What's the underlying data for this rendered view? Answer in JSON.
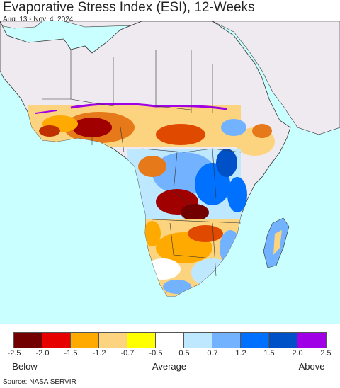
{
  "title": "Evaporative Stress Index (ESI), 12-Weeks",
  "subtitle": "Aug. 13 - Nov. 4, 2024",
  "source": "Source: NASA SERVIR",
  "colors": {
    "ocean": "#c9ffff",
    "no_data_land": "#efeaf0",
    "borders": "#333333"
  },
  "legend": {
    "colors": [
      "#730000",
      "#e60000",
      "#ffaa00",
      "#fcd37f",
      "#ffff00",
      "#ffffff",
      "#bee8ff",
      "#73b2ff",
      "#0070ff",
      "#0050c8",
      "#a000e6"
    ],
    "ticks": [
      "-2.5",
      "-2.0",
      "-1.5",
      "-1.2",
      "-0.7",
      "-0.5",
      "0.5",
      "0.7",
      "1.2",
      "1.5",
      "2.0",
      "2.5"
    ],
    "below_label": "Below",
    "average_label": "Average",
    "above_label": "Above"
  }
}
